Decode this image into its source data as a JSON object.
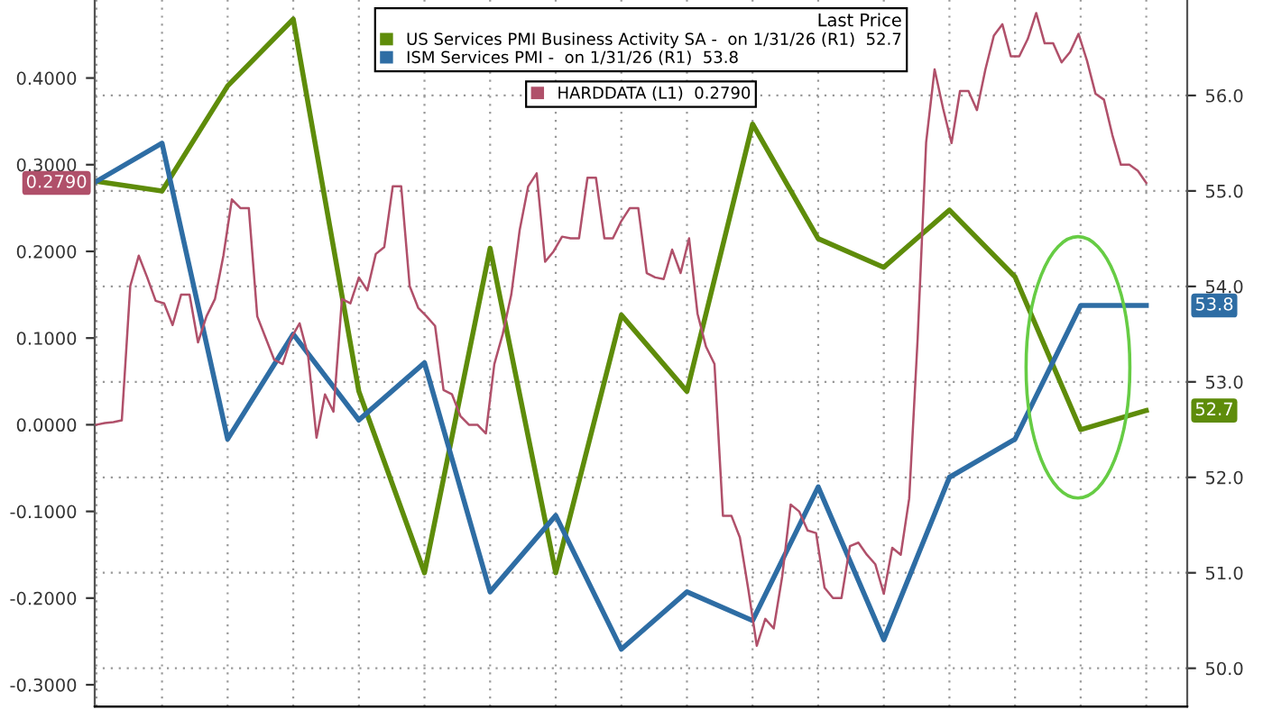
{
  "chart_data": [
    {
      "type": "line",
      "legend_title": "Last Price",
      "legend": "top",
      "grid": true,
      "tick_labels": "y",
      "categories": [
        null,
        null,
        null,
        null,
        null,
        null,
        null,
        null,
        null,
        null,
        null,
        null,
        null,
        null,
        null,
        null,
        null
      ],
      "ylim": [
        49.6,
        57.0
      ],
      "yticks": [
        {
          "value": 50,
          "label": "50.0"
        },
        {
          "value": 51,
          "label": "51.0"
        },
        {
          "value": 52,
          "label": "52.0"
        },
        {
          "value": 53,
          "label": "53.0"
        },
        {
          "value": 54,
          "label": "54.0"
        },
        {
          "value": 55,
          "label": "55.0"
        },
        {
          "value": 56,
          "label": "56.0"
        }
      ],
      "series": [
        {
          "name": "US Services PMI Business Activity SA -  on 1/31/26 (R1)  52.7",
          "color": "#5e8c0a",
          "values": [
            55.1,
            55.0,
            56.1,
            56.8,
            52.9,
            51.0,
            54.4,
            51.0,
            53.7,
            52.9,
            55.7,
            54.5,
            54.2,
            54.8,
            54.1,
            52.5,
            52.7
          ]
        },
        {
          "name": "ISM Services PMI -  on 1/31/26 (R1)  53.8",
          "color": "#2e6da4",
          "values": [
            55.1,
            55.5,
            52.4,
            53.5,
            52.6,
            53.2,
            50.8,
            51.6,
            50.2,
            50.8,
            50.5,
            51.9,
            50.3,
            52.0,
            52.4,
            53.8,
            53.8
          ]
        }
      ],
      "annotations": [
        "52.7",
        "53.8"
      ]
    },
    {
      "type": "line",
      "legend": "top",
      "tick_labels": "y",
      "categories": [
        null,
        null,
        null,
        null,
        null,
        null,
        null,
        null,
        null,
        null,
        null,
        null,
        null,
        null,
        null,
        null,
        null,
        null,
        null,
        null,
        null,
        null,
        null,
        null,
        null,
        null,
        null,
        null,
        null,
        null,
        null,
        null,
        null,
        null,
        null,
        null,
        null,
        null,
        null,
        null,
        null,
        null,
        null,
        null,
        null,
        null,
        null,
        null,
        null,
        null,
        null,
        null,
        null,
        null,
        null,
        null,
        null,
        null,
        null,
        null,
        null,
        null,
        null,
        null,
        null,
        null,
        null,
        null,
        null,
        null,
        null,
        null,
        null,
        null,
        null,
        null,
        null,
        null,
        null,
        null,
        null,
        null,
        null,
        null,
        null,
        null,
        null,
        null,
        null,
        null,
        null,
        null,
        null,
        null,
        null,
        null,
        null,
        null,
        null,
        null,
        null,
        null,
        null,
        null,
        null,
        null,
        null,
        null,
        null,
        null,
        null,
        null,
        null,
        null,
        null,
        null,
        null,
        null,
        null,
        null,
        null,
        null,
        null,
        null,
        null
      ],
      "ylim": [
        -0.325,
        0.49
      ],
      "yticks": [
        {
          "value": -0.3,
          "label": "-0.3000"
        },
        {
          "value": -0.2,
          "label": "-0.2000"
        },
        {
          "value": -0.1,
          "label": "-0.1000"
        },
        {
          "value": 0,
          "label": "0.0000"
        },
        {
          "value": 0.1,
          "label": "0.1000"
        },
        {
          "value": 0.2,
          "label": "0.2000"
        },
        {
          "value": 0.3,
          "label": "0.3000"
        },
        {
          "value": 0.4,
          "label": "0.4000"
        }
      ],
      "series": [
        {
          "name": "HARDDATA (L1)  0.2790",
          "color": "#b0506a",
          "values": [
            0.0,
            0.002,
            0.003,
            0.005,
            0.16,
            0.195,
            0.17,
            0.143,
            0.14,
            0.115,
            0.15,
            0.15,
            0.095,
            0.125,
            0.145,
            0.195,
            0.26,
            0.25,
            0.25,
            0.125,
            0.1,
            0.075,
            0.07,
            0.1,
            0.117,
            0.08,
            -0.015,
            0.035,
            0.015,
            0.145,
            0.14,
            0.17,
            0.155,
            0.197,
            0.205,
            0.275,
            0.275,
            0.16,
            0.135,
            0.125,
            0.114,
            0.04,
            0.035,
            0.01,
            0.0,
            0.0,
            -0.01,
            0.07,
            0.105,
            0.15,
            0.225,
            0.275,
            0.29,
            0.188,
            0.2,
            0.217,
            0.215,
            0.215,
            0.285,
            0.285,
            0.215,
            0.215,
            0.235,
            0.25,
            0.25,
            0.175,
            0.17,
            0.168,
            0.202,
            0.175,
            0.215,
            0.128,
            0.09,
            0.07,
            -0.105,
            -0.105,
            -0.13,
            -0.19,
            -0.255,
            -0.224,
            -0.235,
            -0.175,
            -0.092,
            -0.1,
            -0.122,
            -0.125,
            -0.188,
            -0.2,
            -0.2,
            -0.14,
            -0.136,
            -0.15,
            -0.161,
            -0.195,
            -0.142,
            -0.15,
            -0.085,
            0.1,
            0.326,
            0.41,
            0.365,
            0.325,
            0.385,
            0.385,
            0.363,
            0.41,
            0.449,
            0.462,
            0.425,
            0.425,
            0.445,
            0.475,
            0.44,
            0.44,
            0.418,
            0.43,
            0.451,
            0.42,
            0.382,
            0.375,
            0.334,
            0.3,
            0.3,
            0.293,
            0.279
          ]
        }
      ],
      "annotations": [
        "0.2790"
      ]
    }
  ]
}
